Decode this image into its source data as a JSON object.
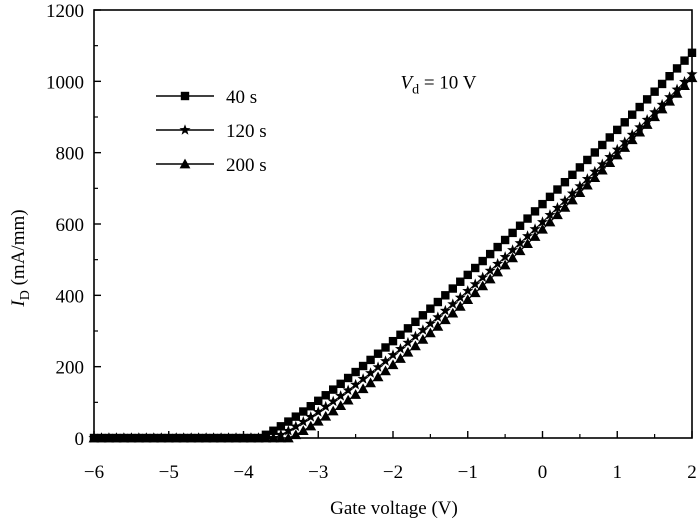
{
  "chart_data": {
    "type": "scatter",
    "xlabel": "Gate voltage (V)",
    "ylabel_main": "I",
    "ylabel_sub": "D",
    "ylabel_unit": " (mA/mm)",
    "xlim": [
      -6,
      2
    ],
    "ylim": [
      0,
      1200
    ],
    "x_ticks": [
      -6,
      -5,
      -4,
      -3,
      -2,
      -1,
      0,
      1,
      2
    ],
    "x_tick_labels": [
      "−6",
      "−5",
      "−4",
      "−3",
      "−2",
      "−1",
      "0",
      "1",
      "2"
    ],
    "y_ticks": [
      0,
      200,
      400,
      600,
      800,
      1000,
      1200
    ],
    "y_tick_labels": [
      "0",
      "200",
      "400",
      "600",
      "800",
      "1000",
      "1200"
    ],
    "grid": false,
    "legend_position": "top-left",
    "annotation": {
      "main": "V",
      "sub": "d",
      "rest": " = 10 V",
      "x": -1.9,
      "y": 1000
    },
    "series": [
      {
        "name": "40 s",
        "marker": "square",
        "vth": -3.8,
        "k": 460,
        "exp": 1.18,
        "y_end": 1080
      },
      {
        "name": "120 s",
        "marker": "star",
        "vth": -3.6,
        "k": 450,
        "exp": 1.18,
        "y_end": 1020
      },
      {
        "name": "200 s",
        "marker": "triangle",
        "vth": -3.4,
        "k": 440,
        "exp": 1.18,
        "y_end": 1010
      }
    ],
    "x_start": -6,
    "x_step": 0.1,
    "n_points": 81
  }
}
